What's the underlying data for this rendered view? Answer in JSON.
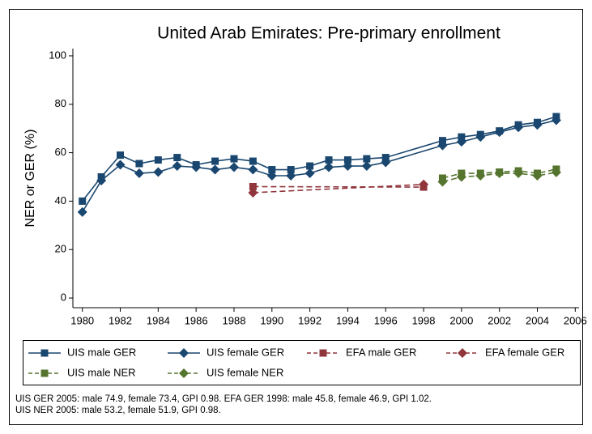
{
  "chart_data": {
    "type": "line",
    "title": "United Arab Emirates: Pre-primary enrollment",
    "y_label": "NER or GER (%)",
    "xlim": [
      1979.5,
      2006.2
    ],
    "xticks": [
      1980,
      1982,
      1984,
      1986,
      1988,
      1990,
      1992,
      1994,
      1996,
      1998,
      2000,
      2002,
      2004,
      2006
    ],
    "ylim": [
      -4,
      103
    ],
    "yticks": [
      0,
      20,
      40,
      60,
      80,
      100
    ],
    "series": [
      {
        "name": "UIS male GER",
        "color": "#1a476f",
        "marker": "square",
        "dashed": false,
        "x": [
          1980,
          1981,
          1982,
          1983,
          1984,
          1985,
          1986,
          1987,
          1988,
          1989,
          1990,
          1991,
          1992,
          1993,
          1994,
          1995,
          1996,
          1999,
          2000,
          2001,
          2002,
          2003,
          2004,
          2005
        ],
        "values": [
          40,
          50,
          59,
          55.5,
          57,
          58,
          55,
          56.5,
          57.5,
          56.5,
          53,
          53,
          54.5,
          57,
          57,
          57.5,
          58,
          65,
          66.5,
          67.5,
          69,
          71.5,
          72.5,
          74.9
        ]
      },
      {
        "name": "UIS female GER",
        "color": "#1a476f",
        "marker": "diamond",
        "dashed": false,
        "x": [
          1980,
          1981,
          1982,
          1983,
          1984,
          1985,
          1986,
          1987,
          1988,
          1989,
          1990,
          1991,
          1992,
          1993,
          1994,
          1995,
          1996,
          1999,
          2000,
          2001,
          2002,
          2003,
          2004,
          2005
        ],
        "values": [
          35.5,
          48.5,
          55,
          51.5,
          52,
          54.5,
          54,
          53,
          54,
          53,
          50.5,
          50.5,
          51.5,
          54,
          54.5,
          54.5,
          56,
          63,
          64.5,
          66.5,
          68.5,
          70.5,
          71.5,
          73.4
        ]
      },
      {
        "name": "EFA male GER",
        "color": "#90353b",
        "marker": "square",
        "dashed": true,
        "x": [
          1989,
          1998
        ],
        "values": [
          46,
          45.8
        ]
      },
      {
        "name": "EFA female GER",
        "color": "#90353b",
        "marker": "diamond",
        "dashed": true,
        "x": [
          1989,
          1998
        ],
        "values": [
          43.5,
          46.9
        ]
      },
      {
        "name": "UIS male NER",
        "color": "#55752f",
        "marker": "square",
        "dashed": true,
        "x": [
          1999,
          2000,
          2001,
          2002,
          2003,
          2004,
          2005
        ],
        "values": [
          49.5,
          51.5,
          51.5,
          52,
          52.5,
          51.5,
          53.2
        ]
      },
      {
        "name": "UIS female NER",
        "color": "#55752f",
        "marker": "diamond",
        "dashed": true,
        "x": [
          1999,
          2000,
          2001,
          2002,
          2003,
          2004,
          2005
        ],
        "values": [
          48,
          50,
          50.5,
          51.5,
          51.5,
          50.5,
          51.9
        ]
      }
    ],
    "notes": [
      "UIS GER 2005: male 74.9, female 73.4, GPI 0.98. EFA GER 1998: male 45.8, female 46.9, GPI 1.02.",
      "UIS NER 2005: male 53.2, female 51.9, GPI 0.98."
    ]
  }
}
